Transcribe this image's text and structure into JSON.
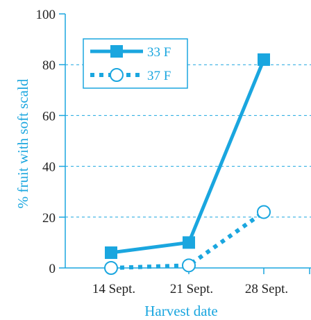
{
  "colors": {
    "accent": "#1aa6df",
    "axis_text": "#222222",
    "background": "#ffffff"
  },
  "chart_data": {
    "type": "line",
    "title": "",
    "xlabel": "Harvest date",
    "ylabel": "% fruit with soft scald",
    "categories": [
      "14 Sept.",
      "21 Sept.",
      "28 Sept."
    ],
    "ylim": [
      0,
      100
    ],
    "yticks": [
      0,
      20,
      40,
      60,
      80,
      100
    ],
    "grid": {
      "horizontal_dashed": true,
      "values": [
        20,
        40,
        60,
        80
      ]
    },
    "legend": {
      "placement": "top-left"
    },
    "series": [
      {
        "name": "33 F",
        "marker": "square",
        "line": "solid",
        "values": [
          6,
          10,
          82
        ]
      },
      {
        "name": "37 F",
        "marker": "circle-open",
        "line": "dotted",
        "values": [
          0,
          1,
          22
        ]
      }
    ]
  }
}
